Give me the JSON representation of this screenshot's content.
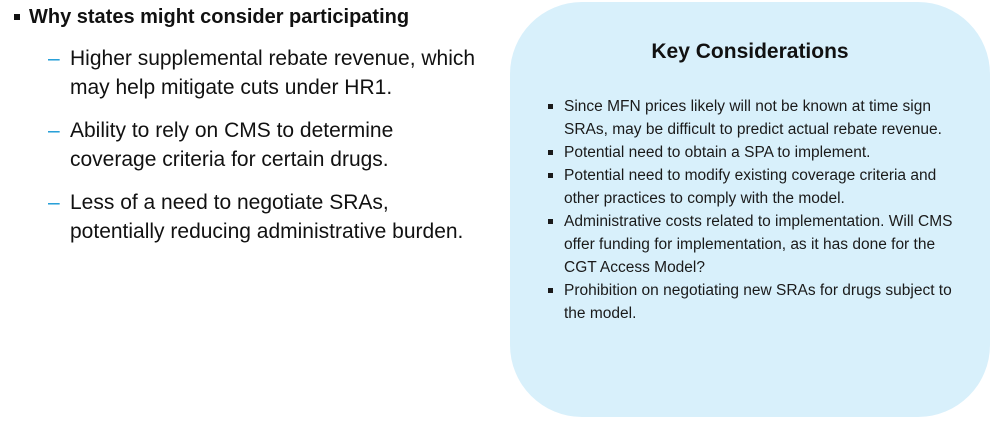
{
  "left": {
    "heading": "Why states might consider participating",
    "items": [
      "Higher supplemental rebate revenue, which may help mitigate cuts under HR1.",
      "Ability to rely on CMS to determine coverage criteria for certain drugs.",
      "Less of a need to negotiate SRAs, potentially reducing administrative burden."
    ],
    "dash_symbol": "–",
    "dash_color": "#1a9ad6"
  },
  "panel": {
    "title": "Key Considerations",
    "background_color": "#d8f0fb",
    "items": [
      "Since MFN prices likely will not be known at time sign SRAs, may be difficult to predict actual rebate revenue.",
      "Potential need to obtain a SPA to implement.",
      "Potential need to modify existing coverage criteria and other practices to comply with the model.",
      "Administrative costs related to implementation. Will CMS offer funding for implementation, as it has done for the CGT Access Model?",
      "Prohibition on negotiating new SRAs for drugs subject to the model."
    ]
  }
}
